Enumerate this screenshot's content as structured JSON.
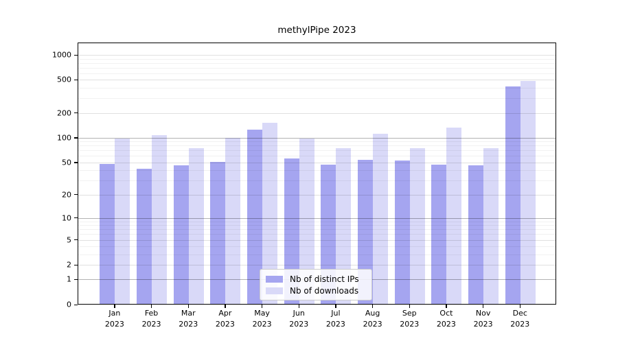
{
  "title": "methylPipe 2023",
  "legend": {
    "items": [
      {
        "label": "Nb of distinct IPs",
        "color": "#a5a5f0"
      },
      {
        "label": "Nb of downloads",
        "color": "#d9d9f8"
      }
    ]
  },
  "colors": {
    "distinct_ips": "#a5a5f0",
    "downloads": "#d9d9f8",
    "axis": "#000000",
    "grid_decade": "rgba(0,0,0,0.30)",
    "grid_labeled": "rgba(0,0,0,0.12)",
    "grid_minor": "rgba(0,0,0,0.055)"
  },
  "chart_data": {
    "type": "bar",
    "title": "methylPipe 2023",
    "categories": [
      "Jan 2023",
      "Feb 2023",
      "Mar 2023",
      "Apr 2023",
      "May 2023",
      "Jun 2023",
      "Jul 2023",
      "Aug 2023",
      "Sep 2023",
      "Oct 2023",
      "Nov 2023",
      "Dec 2023"
    ],
    "x_tick_line1": [
      "Jan",
      "Feb",
      "Mar",
      "Apr",
      "May",
      "Jun",
      "Jul",
      "Aug",
      "Sep",
      "Oct",
      "Nov",
      "Dec"
    ],
    "x_tick_line2": [
      "2023",
      "2023",
      "2023",
      "2023",
      "2023",
      "2023",
      "2023",
      "2023",
      "2023",
      "2023",
      "2023",
      "2023"
    ],
    "series": [
      {
        "name": "Nb of distinct IPs",
        "color": "#a5a5f0",
        "values": [
          47,
          41,
          45,
          50,
          124,
          55,
          46,
          53,
          52,
          46,
          45,
          410
        ]
      },
      {
        "name": "Nb of downloads",
        "color": "#d9d9f8",
        "values": [
          96,
          105,
          74,
          98,
          150,
          96,
          73,
          110,
          73,
          130,
          74,
          478
        ]
      }
    ],
    "yscale": "log1p",
    "yticks": [
      0,
      1,
      2,
      5,
      10,
      20,
      50,
      100,
      200,
      500,
      1000
    ],
    "ytick_labels": [
      "0",
      "1",
      "2",
      "5",
      "10",
      "20",
      "50",
      "100",
      "200",
      "500",
      "1000"
    ],
    "minor_gridlines": [
      3,
      4,
      6,
      7,
      8,
      9,
      30,
      40,
      60,
      70,
      80,
      90,
      300,
      400,
      600,
      700,
      800,
      900
    ],
    "dark_gridlines": [
      1,
      10,
      100
    ],
    "ylim": [
      0,
      1400
    ],
    "xlabel": "",
    "ylabel": "",
    "grid": true,
    "legend_position": "lower center"
  }
}
